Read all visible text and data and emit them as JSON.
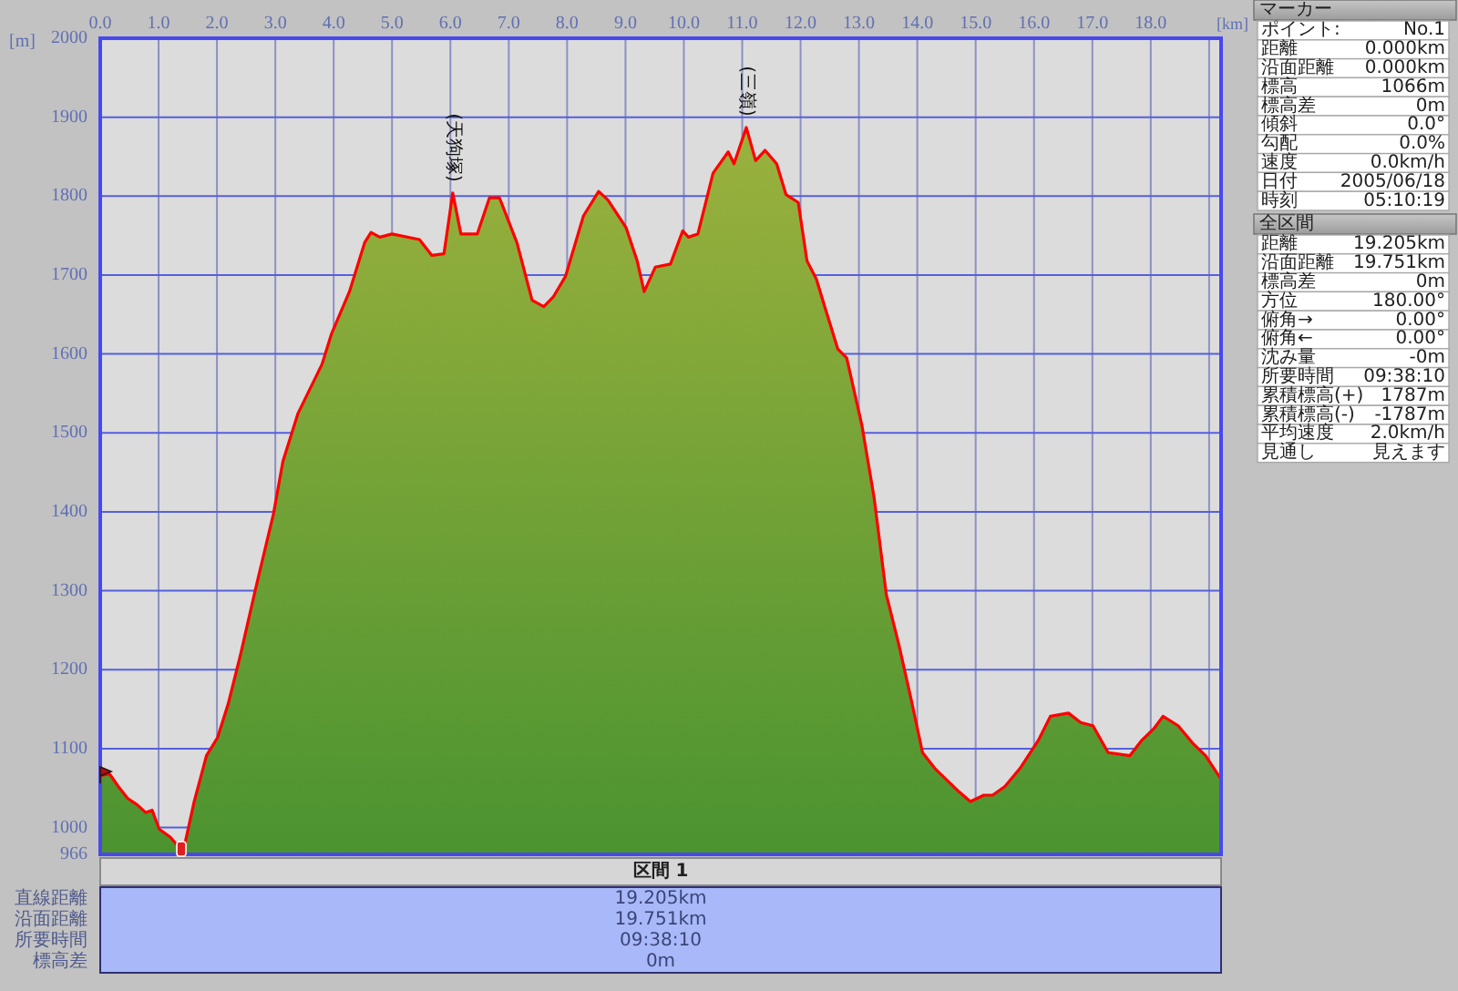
{
  "chart_data": [
    {
      "type": "area",
      "xlabel": "[km]",
      "ylabel": "[m]",
      "x": [
        0,
        0.16,
        0.31,
        0.47,
        0.63,
        0.78,
        0.89,
        1.01,
        1.2,
        1.35,
        1.41,
        1.61,
        1.82,
        2.01,
        2.19,
        2.4,
        2.66,
        2.97,
        3.13,
        3.39,
        3.8,
        3.96,
        4.27,
        4.53,
        4.64,
        4.79,
        5.0,
        5.47,
        5.68,
        5.89,
        6.04,
        6.18,
        6.46,
        6.67,
        6.84,
        7.14,
        7.4,
        7.6,
        7.76,
        7.97,
        8.28,
        8.54,
        8.7,
        9.01,
        9.2,
        9.32,
        9.51,
        9.77,
        9.98,
        10.08,
        10.24,
        10.5,
        10.76,
        10.86,
        11.07,
        11.23,
        11.39,
        11.59,
        11.75,
        11.96,
        12.11,
        12.27,
        12.43,
        12.64,
        12.79,
        13.05,
        13.26,
        13.47,
        13.68,
        13.89,
        14.09,
        14.3,
        14.51,
        14.72,
        14.91,
        15.14,
        15.29,
        15.5,
        15.76,
        16.07,
        16.28,
        16.59,
        16.8,
        17.01,
        17.27,
        17.64,
        17.84,
        18.05,
        18.21,
        18.47,
        18.73,
        18.94,
        19.18,
        19.205
      ],
      "series": [
        {
          "type": "area",
          "color": "#ff0000",
          "values": [
            1066,
            1068,
            1052,
            1037,
            1029,
            1019,
            1022,
            998,
            988,
            975,
            966,
            1033,
            1091,
            1114,
            1156,
            1218,
            1302,
            1398,
            1464,
            1525,
            1587,
            1625,
            1679,
            1741,
            1754,
            1748,
            1752,
            1745,
            1725,
            1727,
            1804,
            1752,
            1752,
            1798,
            1798,
            1741,
            1668,
            1660,
            1672,
            1698,
            1775,
            1806,
            1795,
            1760,
            1718,
            1679,
            1710,
            1714,
            1756,
            1748,
            1752,
            1829,
            1856,
            1841,
            1887,
            1845,
            1858,
            1841,
            1802,
            1792,
            1718,
            1695,
            1656,
            1606,
            1595,
            1510,
            1418,
            1295,
            1233,
            1164,
            1095,
            1075,
            1060,
            1045,
            1033,
            1041,
            1041,
            1052,
            1075,
            1110,
            1141,
            1145,
            1133,
            1129,
            1095,
            1091,
            1110,
            1125,
            1141,
            1129,
            1106,
            1091,
            1064,
            1062
          ]
        }
      ],
      "xlim": [
        0,
        19.205
      ],
      "xticks": [
        {
          "value": 0,
          "label": "0.0"
        },
        {
          "value": 1,
          "label": "1.0"
        },
        {
          "value": 2,
          "label": "2.0"
        },
        {
          "value": 3,
          "label": "3.0"
        },
        {
          "value": 4,
          "label": "4.0"
        },
        {
          "value": 5,
          "label": "5.0"
        },
        {
          "value": 6,
          "label": "6.0"
        },
        {
          "value": 7,
          "label": "7.0"
        },
        {
          "value": 8,
          "label": "8.0"
        },
        {
          "value": 9,
          "label": "9.0"
        },
        {
          "value": 10,
          "label": "10.0"
        },
        {
          "value": 11,
          "label": "11.0"
        },
        {
          "value": 12,
          "label": "12.0"
        },
        {
          "value": 13,
          "label": "13.0"
        },
        {
          "value": 14,
          "label": "14.0"
        },
        {
          "value": 15,
          "label": "15.0"
        },
        {
          "value": 16,
          "label": "16.0"
        },
        {
          "value": 17,
          "label": "17.0"
        },
        {
          "value": 18,
          "label": "18.0"
        },
        {
          "value": 19,
          "label": null
        }
      ],
      "ylim": [
        966,
        2000
      ],
      "yticks": [
        966,
        1000,
        1100,
        1200,
        1300,
        1400,
        1500,
        1600,
        1700,
        1800,
        1900,
        2000
      ],
      "grid": true,
      "annotations": [
        {
          "text": "(天狗塚)",
          "x": 6.04,
          "y": 1804
        },
        {
          "text": "(三嶺)",
          "x": 11.07,
          "y": 1887
        }
      ]
    },
    {
      "type": "other",
      "title": "マーカー",
      "annotations": [
        "ポイント:",
        "No.1",
        "距離",
        "0.000km",
        "沿面距離",
        "0.000km",
        "標高",
        "1066m",
        "標高差",
        "0m",
        "傾斜",
        "0.0°",
        "勾配",
        "0.0%",
        "速度",
        "0.0km/h",
        "日付",
        "2005/06/18",
        "時刻",
        "05:10:19"
      ]
    },
    {
      "type": "other",
      "title": "全区間",
      "annotations": [
        "距離",
        "19.205km",
        "沿面距離",
        "19.751km",
        "標高差",
        "0m",
        "方位",
        "180.00°",
        "俯角→",
        "0.00°",
        "俯角←",
        "0.00°",
        "沈み量",
        "-0m",
        "所要時間",
        "09:38:10",
        "累積標高(+)",
        "1787m",
        "累積標高(-)",
        "-1787m",
        "平均速度",
        "2.0km/h",
        "見通し",
        "見えます"
      ]
    },
    {
      "type": "other",
      "title": "区間 1",
      "annotations": [
        "直線距離",
        "19.205km",
        "沿面距離",
        "19.751km",
        "所要時間",
        "09:38:10",
        "標高差",
        "0m"
      ]
    }
  ]
}
